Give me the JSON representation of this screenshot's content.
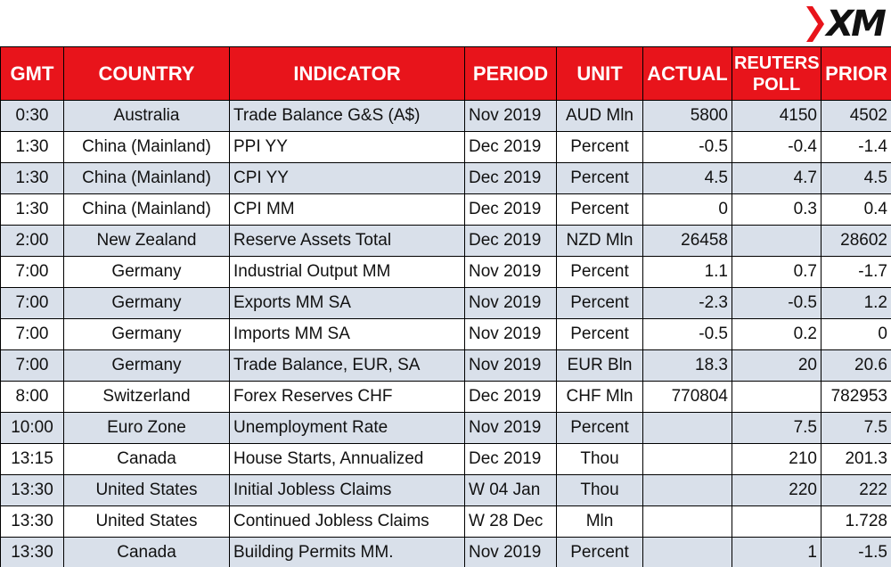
{
  "brand": {
    "logo_text": "XM"
  },
  "colors": {
    "header_bg": "#e8141b",
    "header_text": "#ffffff",
    "row_alt": "#d9e0ea",
    "row": "#ffffff"
  },
  "headers": {
    "gmt": "GMT",
    "country": "COUNTRY",
    "indicator": "INDICATOR",
    "period": "PERIOD",
    "unit": "UNIT",
    "actual": "ACTUAL",
    "reuters_line1": "REUTERS",
    "reuters_line2": "POLL",
    "prior": "PRIOR"
  },
  "rows": [
    {
      "gmt": "0:30",
      "country": "Australia",
      "indicator": "Trade Balance G&S (A$)",
      "period": "Nov 2019",
      "unit": "AUD Mln",
      "actual": "5800",
      "poll": "4150",
      "prior": "4502"
    },
    {
      "gmt": "1:30",
      "country": "China (Mainland)",
      "indicator": "PPI YY",
      "period": "Dec 2019",
      "unit": "Percent",
      "actual": "-0.5",
      "poll": "-0.4",
      "prior": "-1.4"
    },
    {
      "gmt": "1:30",
      "country": "China (Mainland)",
      "indicator": "CPI YY",
      "period": "Dec 2019",
      "unit": "Percent",
      "actual": "4.5",
      "poll": "4.7",
      "prior": "4.5"
    },
    {
      "gmt": "1:30",
      "country": "China (Mainland)",
      "indicator": "CPI MM",
      "period": "Dec 2019",
      "unit": "Percent",
      "actual": "0",
      "poll": "0.3",
      "prior": "0.4"
    },
    {
      "gmt": "2:00",
      "country": "New Zealand",
      "indicator": "Reserve Assets Total",
      "period": "Dec 2019",
      "unit": "NZD Mln",
      "actual": "26458",
      "poll": "",
      "prior": "28602"
    },
    {
      "gmt": "7:00",
      "country": "Germany",
      "indicator": "Industrial Output MM",
      "period": "Nov 2019",
      "unit": "Percent",
      "actual": "1.1",
      "poll": "0.7",
      "prior": "-1.7"
    },
    {
      "gmt": "7:00",
      "country": "Germany",
      "indicator": "Exports MM SA",
      "period": "Nov 2019",
      "unit": "Percent",
      "actual": "-2.3",
      "poll": "-0.5",
      "prior": "1.2"
    },
    {
      "gmt": "7:00",
      "country": "Germany",
      "indicator": "Imports MM SA",
      "period": "Nov 2019",
      "unit": "Percent",
      "actual": "-0.5",
      "poll": "0.2",
      "prior": "0"
    },
    {
      "gmt": "7:00",
      "country": "Germany",
      "indicator": "Trade Balance, EUR, SA",
      "period": "Nov 2019",
      "unit": "EUR Bln",
      "actual": "18.3",
      "poll": "20",
      "prior": "20.6"
    },
    {
      "gmt": "8:00",
      "country": "Switzerland",
      "indicator": "Forex Reserves CHF",
      "period": "Dec 2019",
      "unit": "CHF Mln",
      "actual": "770804",
      "poll": "",
      "prior": "782953"
    },
    {
      "gmt": "10:00",
      "country": "Euro Zone",
      "indicator": "Unemployment Rate",
      "period": "Nov 2019",
      "unit": "Percent",
      "actual": "",
      "poll": "7.5",
      "prior": "7.5"
    },
    {
      "gmt": "13:15",
      "country": "Canada",
      "indicator": "House Starts, Annualized",
      "period": "Dec 2019",
      "unit": "Thou",
      "actual": "",
      "poll": "210",
      "prior": "201.3"
    },
    {
      "gmt": "13:30",
      "country": "United States",
      "indicator": "Initial Jobless Claims",
      "period": "W 04 Jan",
      "unit": "Thou",
      "actual": "",
      "poll": "220",
      "prior": "222"
    },
    {
      "gmt": "13:30",
      "country": "United States",
      "indicator": "Continued Jobless Claims",
      "period": "W 28 Dec",
      "unit": "Mln",
      "actual": "",
      "poll": "",
      "prior": "1.728"
    },
    {
      "gmt": "13:30",
      "country": "Canada",
      "indicator": "Building Permits MM.",
      "period": "Nov 2019",
      "unit": "Percent",
      "actual": "",
      "poll": "1",
      "prior": "-1.5"
    }
  ]
}
